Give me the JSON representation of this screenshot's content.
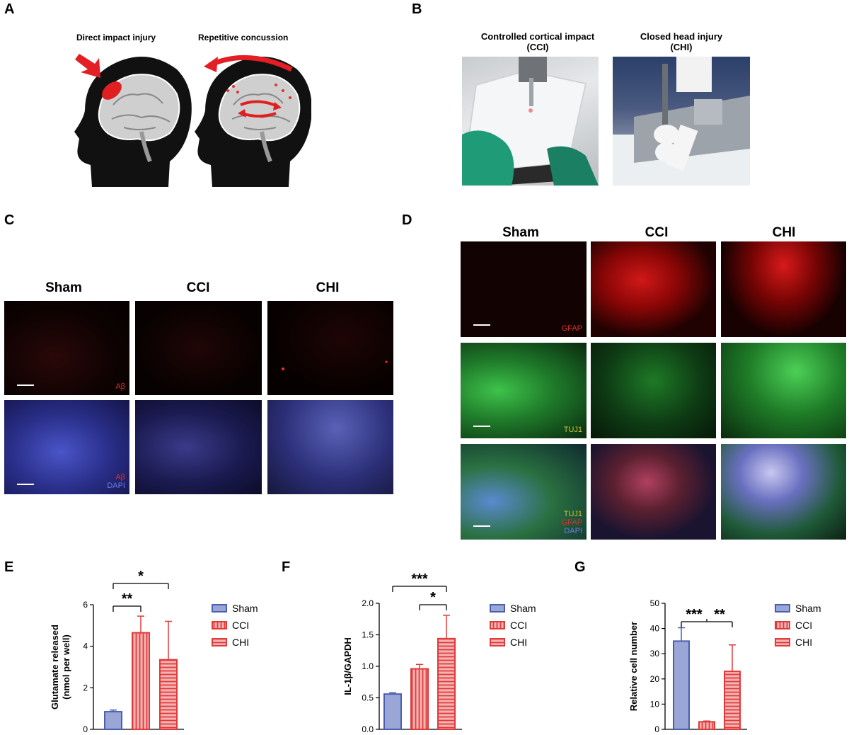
{
  "panels": {
    "A": {
      "letter": "A",
      "left_title": "Direct impact injury",
      "right_title": "Repetitive concussion"
    },
    "B": {
      "letter": "B",
      "left_title_line1": "Controlled cortical impact",
      "left_title_line2": "(CCI)",
      "right_title_line1": "Closed head injury",
      "right_title_line2": "(CHI)"
    },
    "C": {
      "letter": "C",
      "columns": [
        "Sham",
        "CCI",
        "CHI"
      ],
      "row1_label": "Aβ",
      "row2_label_1": "Aβ",
      "row2_label_2": "DAPI"
    },
    "D": {
      "letter": "D",
      "columns": [
        "Sham",
        "CCI",
        "CHI"
      ],
      "row1_label": "GFAP",
      "row2_label": "TUJ1",
      "row3_label_1": "TUJ1",
      "row3_label_2": "GFAP",
      "row3_label_3": "DAPI"
    },
    "E": {
      "letter": "E"
    },
    "F": {
      "letter": "F"
    },
    "G": {
      "letter": "G"
    }
  },
  "colors": {
    "sham": "#4a5fb0",
    "sham_fill": "#9aa6d6",
    "injury": "#e03a3a",
    "injury_fill": "#f5b3b3"
  },
  "chart_data": [
    {
      "type": "bar",
      "panel": "E",
      "categories": [
        "Sham",
        "CCI",
        "CHI"
      ],
      "series": [
        {
          "values": [
            0.85,
            4.65,
            3.35
          ],
          "errors": [
            0.08,
            0.8,
            1.85
          ]
        }
      ],
      "ylabel_line1": "Glutamate released",
      "ylabel_line2": "(nmol per well)",
      "ylim": [
        0,
        6
      ],
      "yticks": [
        "0",
        "2",
        "4",
        "6"
      ],
      "legend": [
        "Sham",
        "CCI",
        "CHI"
      ],
      "significance": [
        {
          "from": "Sham",
          "to": "CCI",
          "label": "**"
        },
        {
          "from": "Sham",
          "to": "CHI",
          "label": "*"
        }
      ]
    },
    {
      "type": "bar",
      "panel": "F",
      "categories": [
        "Sham",
        "CCI",
        "CHI"
      ],
      "series": [
        {
          "values": [
            0.56,
            0.96,
            1.44
          ],
          "errors": [
            0.02,
            0.07,
            0.37
          ]
        }
      ],
      "ylabel": "IL-1β/GAPDH",
      "ylim": [
        0,
        2
      ],
      "yticks": [
        "0.0",
        "0.5",
        "1.0",
        "1.5",
        "2.0"
      ],
      "legend": [
        "Sham",
        "CCI",
        "CHI"
      ],
      "significance": [
        {
          "from": "Sham",
          "to": "CHI",
          "label": "***"
        },
        {
          "from": "CCI",
          "to": "CHI",
          "label": "*"
        }
      ]
    },
    {
      "type": "bar",
      "panel": "G",
      "categories": [
        "Sham",
        "CCI",
        "CHI"
      ],
      "series": [
        {
          "values": [
            35,
            3,
            23
          ],
          "errors": [
            5.3,
            0.3,
            10.5
          ]
        }
      ],
      "ylabel": "Relative cell number",
      "ylim": [
        0,
        50
      ],
      "yticks": [
        "0",
        "10",
        "20",
        "30",
        "40",
        "50"
      ],
      "legend": [
        "Sham",
        "CCI",
        "CHI"
      ],
      "significance": [
        {
          "from": "Sham",
          "to": "CCI",
          "label": "***"
        },
        {
          "from": "CCI",
          "to": "CHI",
          "label": "**"
        }
      ]
    }
  ]
}
